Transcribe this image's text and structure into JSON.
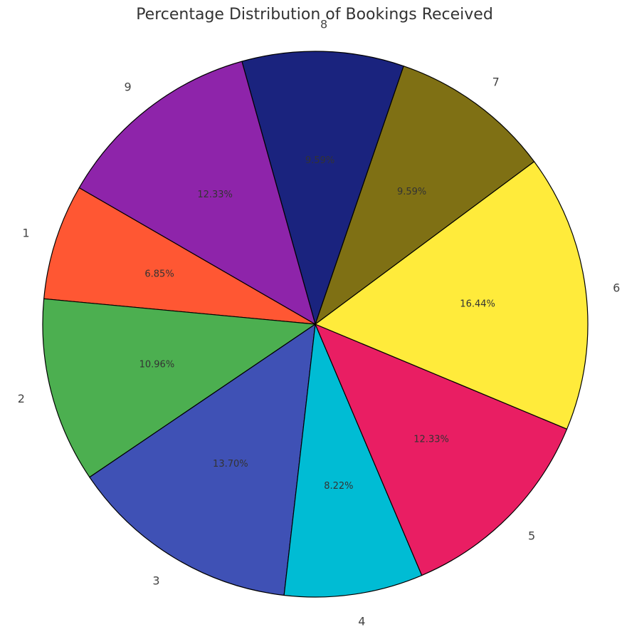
{
  "chart_data": {
    "type": "pie",
    "title": "Percentage Distribution of Bookings Received",
    "categories": [
      "1",
      "2",
      "3",
      "4",
      "5",
      "6",
      "7",
      "8",
      "9"
    ],
    "values": [
      6.85,
      10.96,
      13.7,
      8.22,
      12.33,
      16.44,
      9.59,
      9.59,
      12.33
    ],
    "value_labels": [
      "6.85%",
      "10.96%",
      "13.70%",
      "8.22%",
      "12.33%",
      "16.44%",
      "9.59%",
      "9.59%",
      "12.33%"
    ],
    "colors": [
      "#FF5733",
      "#4CAF50",
      "#3F51B5",
      "#00BCD4",
      "#E91E63",
      "#FFEB3B",
      "#7F7014",
      "#1A237E",
      "#8E24AA"
    ],
    "start_angle_deg": 150,
    "direction": "counterclockwise",
    "edge_color": "#000000"
  }
}
